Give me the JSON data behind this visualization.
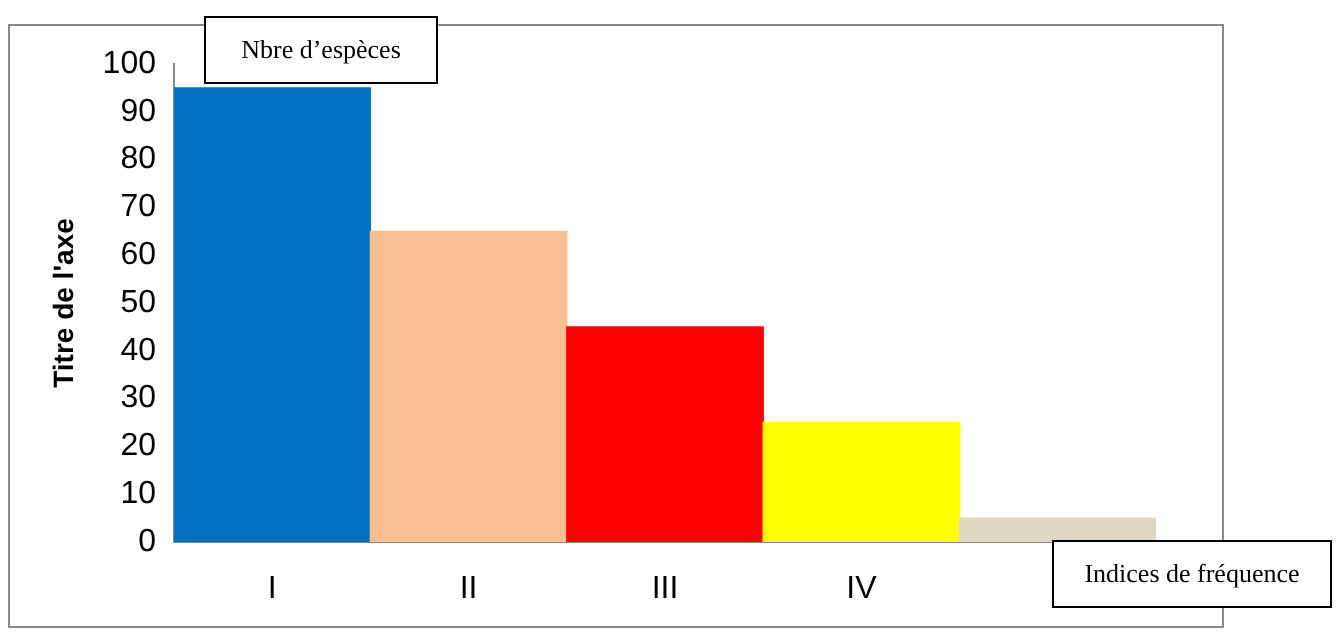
{
  "chart_data": {
    "type": "bar",
    "ylabel": "Titre de l'axe",
    "xlabel": "Indices de fréquence",
    "annotations": [
      "Nbre d’espèces"
    ],
    "categories": [
      "I",
      "II",
      "III",
      "IV",
      null
    ],
    "values": [
      95,
      65,
      45,
      25,
      5
    ],
    "colors": [
      "#0070c0",
      "#f8c090",
      "#ff0000",
      "#ffff00",
      "#ddd9c3"
    ],
    "ylim": [
      0,
      100
    ],
    "yticks": [
      0,
      10,
      20,
      30,
      40,
      50,
      60,
      70,
      80,
      90,
      100
    ],
    "grid": false,
    "legend": false
  }
}
